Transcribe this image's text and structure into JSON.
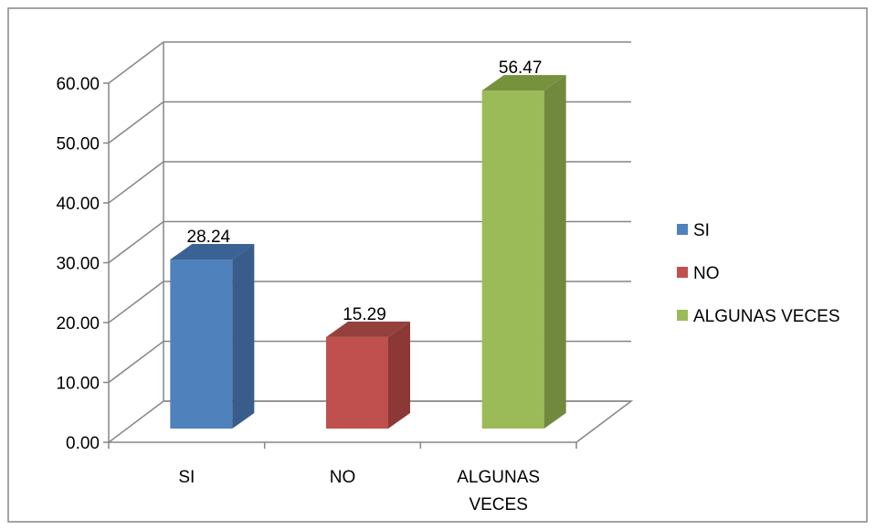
{
  "chart_data": {
    "type": "bar",
    "three_d": true,
    "categories": [
      "SI",
      "NO",
      "ALGUNAS VECES"
    ],
    "category_tick_lines": [
      [
        "SI"
      ],
      [
        "NO"
      ],
      [
        "ALGUNAS",
        "VECES"
      ]
    ],
    "values": [
      28.24,
      15.29,
      56.47
    ],
    "data_labels": [
      "28.24",
      "15.29",
      "56.47"
    ],
    "y_ticks": [
      0,
      10,
      20,
      30,
      40,
      50,
      60
    ],
    "y_tick_labels": [
      "0.00",
      "10.00",
      "20.00",
      "30.00",
      "40.00",
      "50.00",
      "60.00"
    ],
    "ylim": [
      0,
      60
    ],
    "grid": true,
    "legend_position": "right",
    "legend": [
      {
        "label": "SI",
        "color": "#4f81bd"
      },
      {
        "label": "NO",
        "color": "#c0504d"
      },
      {
        "label": "ALGUNAS VECES",
        "color": "#9bbb59"
      }
    ],
    "colors": {
      "front": [
        "#4f81bd",
        "#c0504d",
        "#9bbb59"
      ],
      "side": [
        "#385d8a",
        "#8c3836",
        "#71893f"
      ],
      "top": [
        "#3a6294",
        "#94403d",
        "#76923c"
      ],
      "axis": "#868686",
      "border": "#868686"
    }
  }
}
